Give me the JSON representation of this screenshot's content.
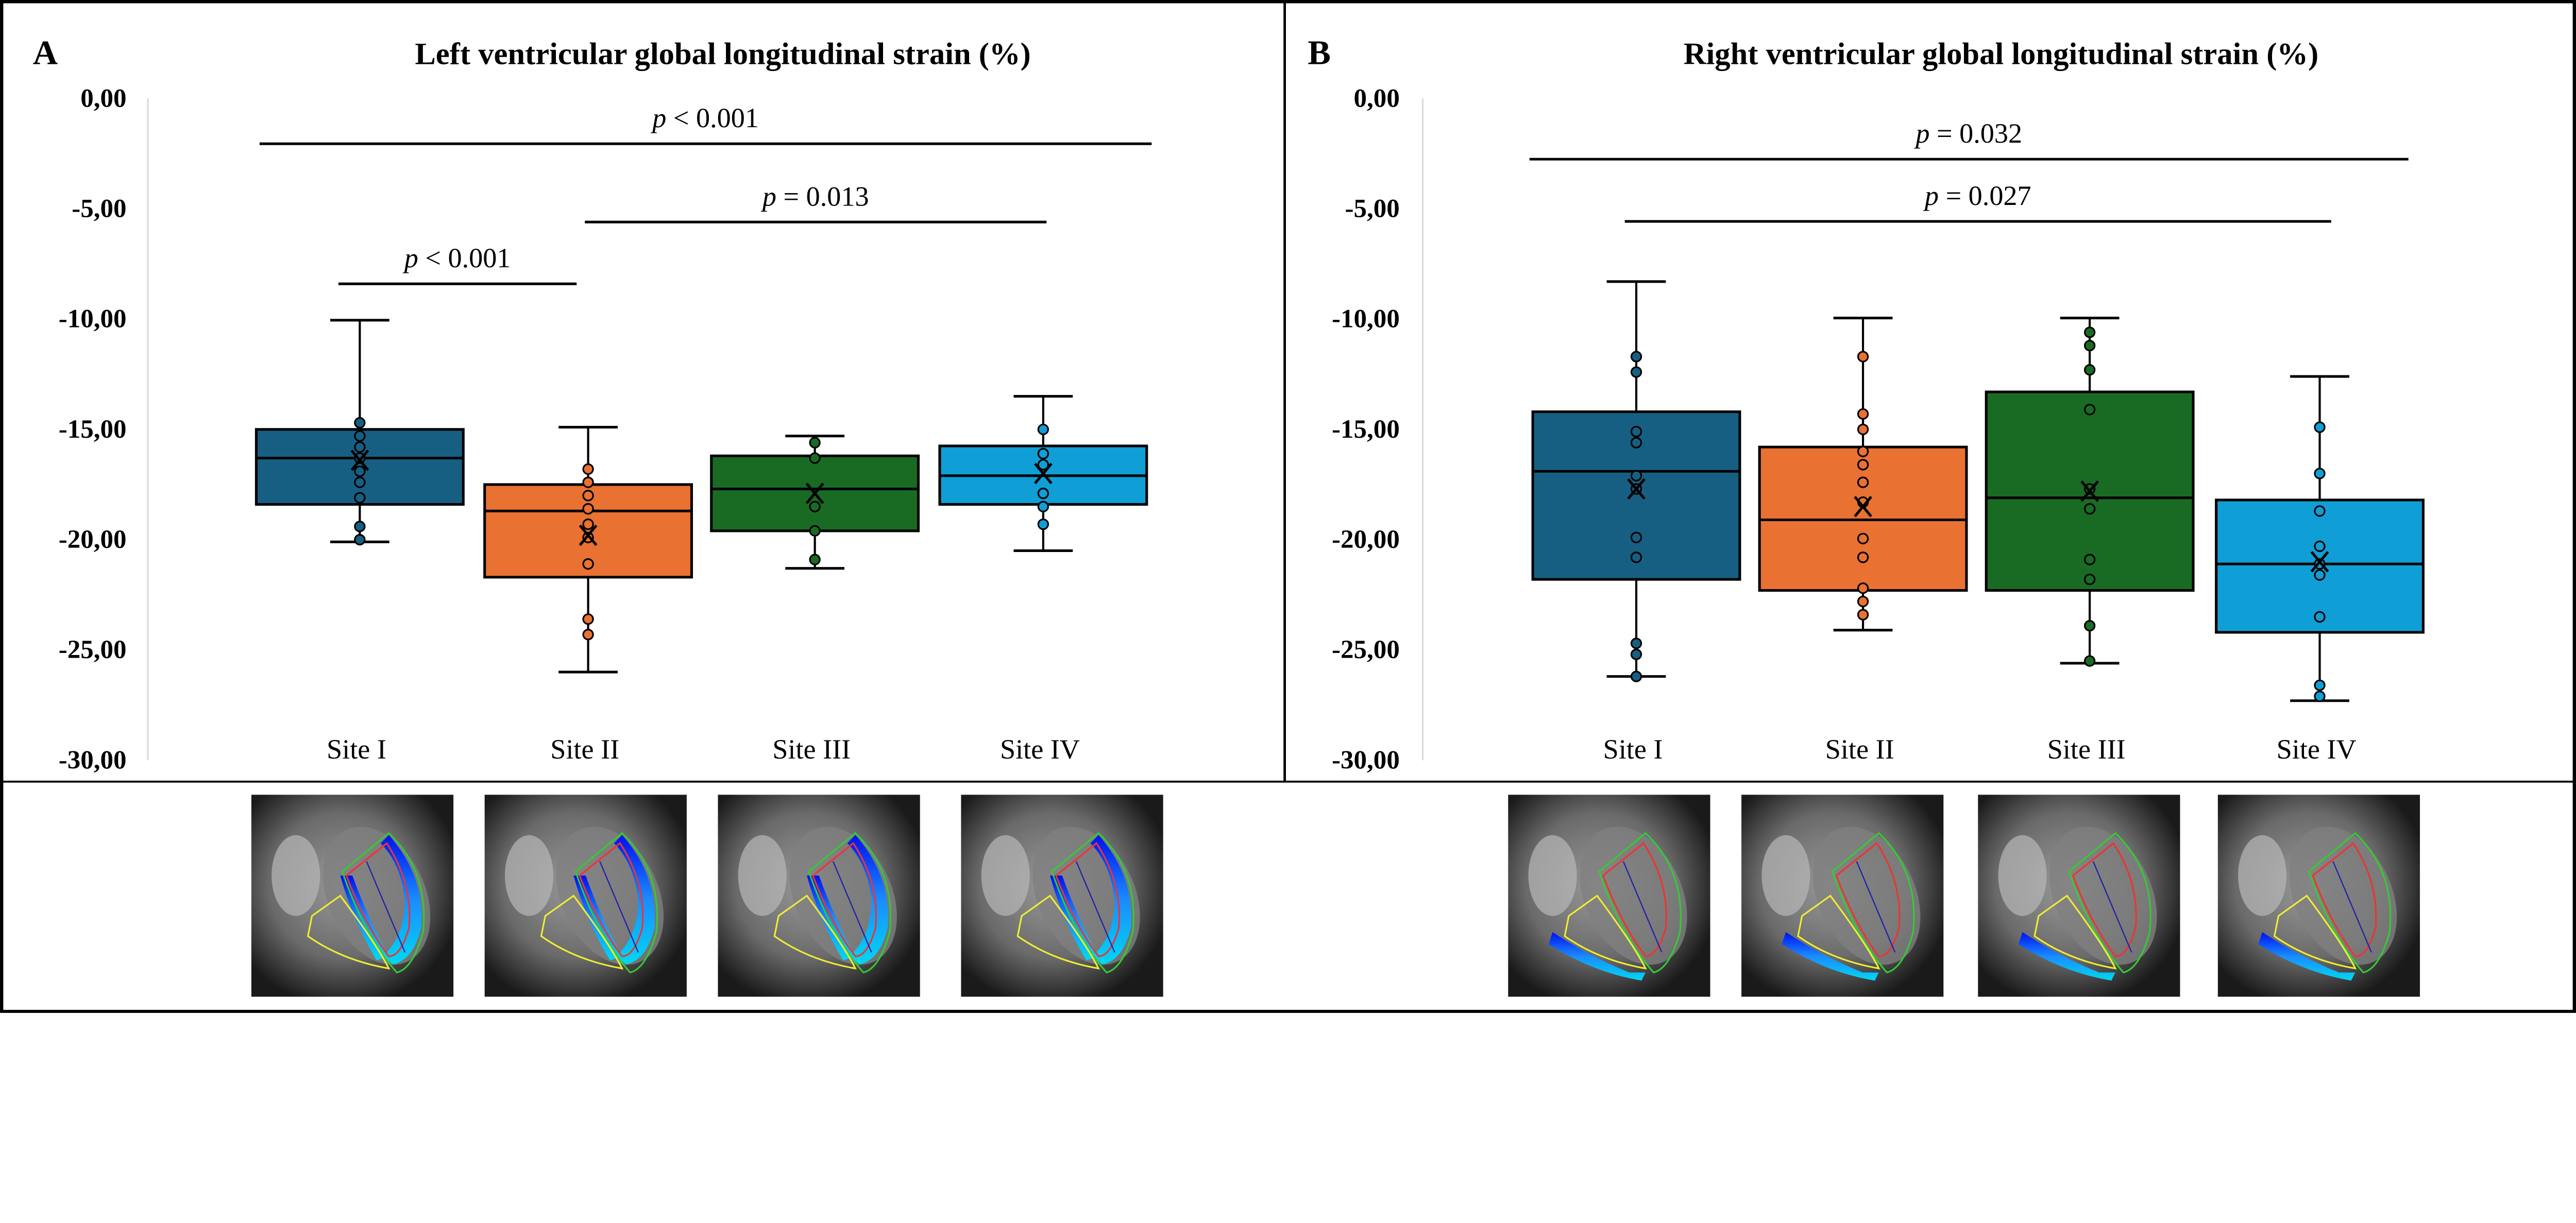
{
  "colors": {
    "site1": "#175f82",
    "site2": "#e97132",
    "site3": "#196b24",
    "site4": "#0f9ed5"
  },
  "chart_data": [
    {
      "type": "box",
      "panel_label": "A",
      "title": "Left ventricular global longitudinal strain (%)",
      "categories": [
        "Site I",
        "Site II",
        "Site III",
        "Site IV"
      ],
      "ylim": [
        -30,
        0
      ],
      "yticks": [
        "0,00",
        "-5,00",
        "-10,00",
        "-15,00",
        "-20,00",
        "-25,00",
        "-30,00"
      ],
      "ytick_values": [
        0,
        -5,
        -10,
        -15,
        -20,
        -25,
        -30
      ],
      "grid": false,
      "boxes": [
        {
          "category": "Site I",
          "whisker_high": -10.05,
          "q3": -15.0,
          "median": -16.3,
          "q1": -18.4,
          "whisker_low": -20.1,
          "mean": -16.4,
          "points": [
            -14.7,
            -15.3,
            -15.8,
            -16.3,
            -16.9,
            -17.4,
            -18.1,
            -19.4,
            -20.0
          ]
        },
        {
          "category": "Site II",
          "whisker_high": -14.9,
          "q3": -17.5,
          "median": -18.7,
          "q1": -21.7,
          "whisker_low": -26.0,
          "mean": -19.8,
          "points": [
            -16.8,
            -17.4,
            -18.0,
            -18.6,
            -19.3,
            -19.9,
            -21.1,
            -23.6,
            -24.3
          ]
        },
        {
          "category": "Site III",
          "whisker_high": -15.3,
          "q3": -16.2,
          "median": -17.7,
          "q1": -19.6,
          "whisker_low": -21.3,
          "mean": -17.9,
          "points": [
            -15.6,
            -16.3,
            -18.5,
            -19.6,
            -20.9
          ]
        },
        {
          "category": "Site IV",
          "whisker_high": -13.5,
          "q3": -15.75,
          "median": -17.1,
          "q1": -18.4,
          "whisker_low": -20.5,
          "mean": -17.0,
          "points": [
            -15.0,
            -16.1,
            -16.6,
            -17.9,
            -18.5,
            -19.3
          ]
        }
      ],
      "significance": [
        {
          "from": "Site I",
          "to": "Site IV",
          "y": -2.05,
          "p": "p",
          "text": " < 0.001"
        },
        {
          "from": "Site II",
          "to": "Site IV",
          "y": -5.6,
          "p": "p",
          "text": " = 0.013"
        },
        {
          "from": "Site I",
          "to": "Site II",
          "y": -8.4,
          "p": "p",
          "text": " < 0.001"
        }
      ]
    },
    {
      "type": "box",
      "panel_label": "B",
      "title": "Right ventricular global longitudinal strain (%)",
      "categories": [
        "Site I",
        "Site II",
        "Site III",
        "Site IV"
      ],
      "ylim": [
        -30,
        0
      ],
      "yticks": [
        "0,00",
        "-5,00",
        "-10,00",
        "-15,00",
        "-20,00",
        "-25,00",
        "-30,00"
      ],
      "ytick_values": [
        0,
        -5,
        -10,
        -15,
        -20,
        -25,
        -30
      ],
      "grid": false,
      "boxes": [
        {
          "category": "Site I",
          "whisker_high": -8.3,
          "q3": -14.2,
          "median": -16.9,
          "q1": -21.8,
          "whisker_low": -26.2,
          "mean": -17.7,
          "points": [
            -11.7,
            -12.4,
            -15.1,
            -15.6,
            -17.1,
            -17.7,
            -19.9,
            -20.8,
            -24.7,
            -25.2,
            -26.2
          ]
        },
        {
          "category": "Site II",
          "whisker_high": -9.95,
          "q3": -15.8,
          "median": -19.1,
          "q1": -22.3,
          "whisker_low": -24.1,
          "mean": -18.5,
          "points": [
            -11.7,
            -14.3,
            -15.0,
            -16.0,
            -16.6,
            -17.4,
            -18.3,
            -19.95,
            -20.8,
            -22.2,
            -22.8,
            -23.4
          ]
        },
        {
          "category": "Site III",
          "whisker_high": -9.95,
          "q3": -13.3,
          "median": -18.1,
          "q1": -22.3,
          "whisker_low": -25.6,
          "mean": -17.8,
          "points": [
            -10.6,
            -11.2,
            -12.3,
            -14.1,
            -17.7,
            -18.6,
            -20.9,
            -21.8,
            -23.9,
            -25.5
          ]
        },
        {
          "category": "Site IV",
          "whisker_high": -12.6,
          "q3": -18.2,
          "median": -21.1,
          "q1": -24.2,
          "whisker_low": -27.3,
          "mean": -21.0,
          "points": [
            -14.9,
            -17.0,
            -18.7,
            -20.3,
            -21.1,
            -21.6,
            -23.5,
            -26.6,
            -27.1
          ]
        }
      ],
      "significance": [
        {
          "from": "Site I",
          "to": "Site IV",
          "y": -2.75,
          "p": "p",
          "text": " = 0.032",
          "extend": true
        },
        {
          "from": "Site I",
          "to": "Site IV",
          "y": -5.57,
          "p": "p",
          "text": " = 0.027"
        }
      ]
    }
  ],
  "thumbnails": [
    {
      "panel": "A",
      "site": "Site I",
      "overlay": "lv"
    },
    {
      "panel": "A",
      "site": "Site II",
      "overlay": "lv"
    },
    {
      "panel": "A",
      "site": "Site III",
      "overlay": "lv"
    },
    {
      "panel": "A",
      "site": "Site IV",
      "overlay": "lv"
    },
    {
      "panel": "B",
      "site": "Site I",
      "overlay": "rv"
    },
    {
      "panel": "B",
      "site": "Site II",
      "overlay": "rv"
    },
    {
      "panel": "B",
      "site": "Site III",
      "overlay": "rv"
    },
    {
      "panel": "B",
      "site": "Site IV",
      "overlay": "rv"
    }
  ]
}
